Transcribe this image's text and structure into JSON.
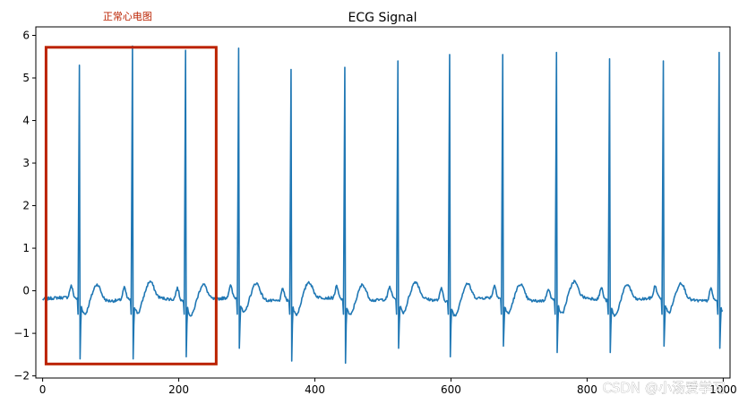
{
  "chart_data": {
    "type": "line",
    "title": "ECG Signal",
    "xlabel": "",
    "ylabel": "",
    "xlim": [
      -10,
      1010
    ],
    "ylim": [
      -2.05,
      6.2
    ],
    "x_ticks": [
      0,
      200,
      400,
      600,
      800,
      1000
    ],
    "y_ticks": [
      -2,
      -1,
      0,
      1,
      2,
      3,
      4,
      5,
      6
    ],
    "grid": false,
    "legend": "none",
    "series_color": "#1f77b4",
    "n_samples": 1000,
    "baseline": -0.2,
    "beats": [
      {
        "sample": 54,
        "r_peak": 5.3,
        "s_trough": -1.6
      },
      {
        "sample": 132,
        "r_peak": 5.75,
        "s_trough": -1.6
      },
      {
        "sample": 210,
        "r_peak": 5.65,
        "s_trough": -1.55
      },
      {
        "sample": 288,
        "r_peak": 5.7,
        "s_trough": -1.35
      },
      {
        "sample": 365,
        "r_peak": 5.2,
        "s_trough": -1.65
      },
      {
        "sample": 444,
        "r_peak": 5.25,
        "s_trough": -1.7
      },
      {
        "sample": 522,
        "r_peak": 5.4,
        "s_trough": -1.35
      },
      {
        "sample": 598,
        "r_peak": 5.55,
        "s_trough": -1.55
      },
      {
        "sample": 676,
        "r_peak": 5.55,
        "s_trough": -1.3
      },
      {
        "sample": 755,
        "r_peak": 5.6,
        "s_trough": -1.45
      },
      {
        "sample": 833,
        "r_peak": 5.45,
        "s_trough": -1.45
      },
      {
        "sample": 912,
        "r_peak": 5.4,
        "s_trough": -1.3
      },
      {
        "sample": 994,
        "r_peak": 5.6,
        "s_trough": -1.35
      }
    ],
    "annotation": {
      "label": "正常心电图",
      "color": "#bb2200",
      "x_range": [
        5,
        255
      ],
      "y_range": [
        -1.72,
        5.72
      ]
    }
  },
  "watermark": "CSDN @小汤爱学习"
}
